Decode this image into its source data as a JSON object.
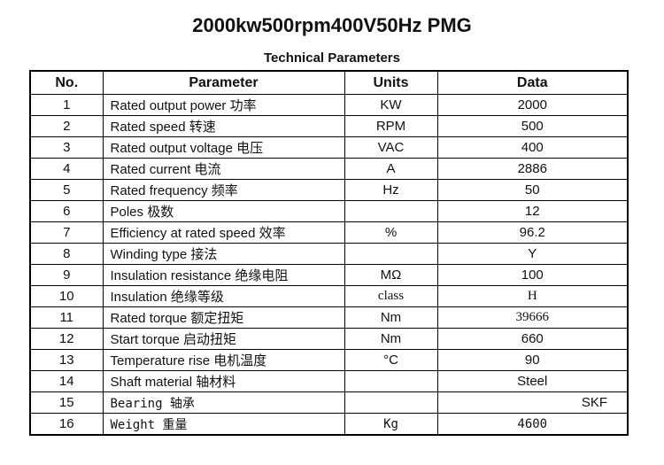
{
  "page": {
    "title": "2000kw500rpm400V50Hz PMG",
    "subtitle": "Technical Parameters"
  },
  "table": {
    "headers": [
      "No.",
      "Parameter",
      "Units",
      "Data"
    ],
    "rows": [
      {
        "no": "1",
        "parameter": "Rated output power 功率",
        "units": "KW",
        "data": "2000"
      },
      {
        "no": "2",
        "parameter": "Rated speed 转速",
        "units": "RPM",
        "data": "500"
      },
      {
        "no": "3",
        "parameter": "Rated output voltage 电压",
        "units": "VAC",
        "data": "400"
      },
      {
        "no": "4",
        "parameter": "Rated current 电流",
        "units": "A",
        "data": "2886"
      },
      {
        "no": "5",
        "parameter": "Rated frequency 频率",
        "units": "Hz",
        "data": "50"
      },
      {
        "no": "6",
        "parameter": "Poles 极数",
        "units": "",
        "data": "12"
      },
      {
        "no": "7",
        "parameter": "Efficiency at rated speed 效率",
        "units": "%",
        "data": "96.2"
      },
      {
        "no": "8",
        "parameter": "Winding type 接法",
        "units": "",
        "data": "Y"
      },
      {
        "no": "9",
        "parameter": "Insulation resistance 绝缘电阻",
        "units": "MΩ",
        "data": "100"
      },
      {
        "no": "10",
        "parameter": "Insulation 绝缘等级",
        "units": "class",
        "data": "H"
      },
      {
        "no": "11",
        "parameter": "Rated torque 额定扭矩",
        "units": "Nm",
        "data": "39666"
      },
      {
        "no": "12",
        "parameter": "Start torque 启动扭矩",
        "units": "Nm",
        "data": "660"
      },
      {
        "no": "13",
        "parameter": "Temperature rise 电机温度",
        "units": "°C",
        "data": "90"
      },
      {
        "no": "14",
        "parameter": "Shaft material 轴材料",
        "units": "",
        "data": "Steel"
      },
      {
        "no": "15",
        "parameter": "Bearing 轴承",
        "units": "",
        "data": "SKF"
      },
      {
        "no": "16",
        "parameter": "Weight 重量",
        "units": "Kg",
        "data": "4600"
      }
    ]
  }
}
